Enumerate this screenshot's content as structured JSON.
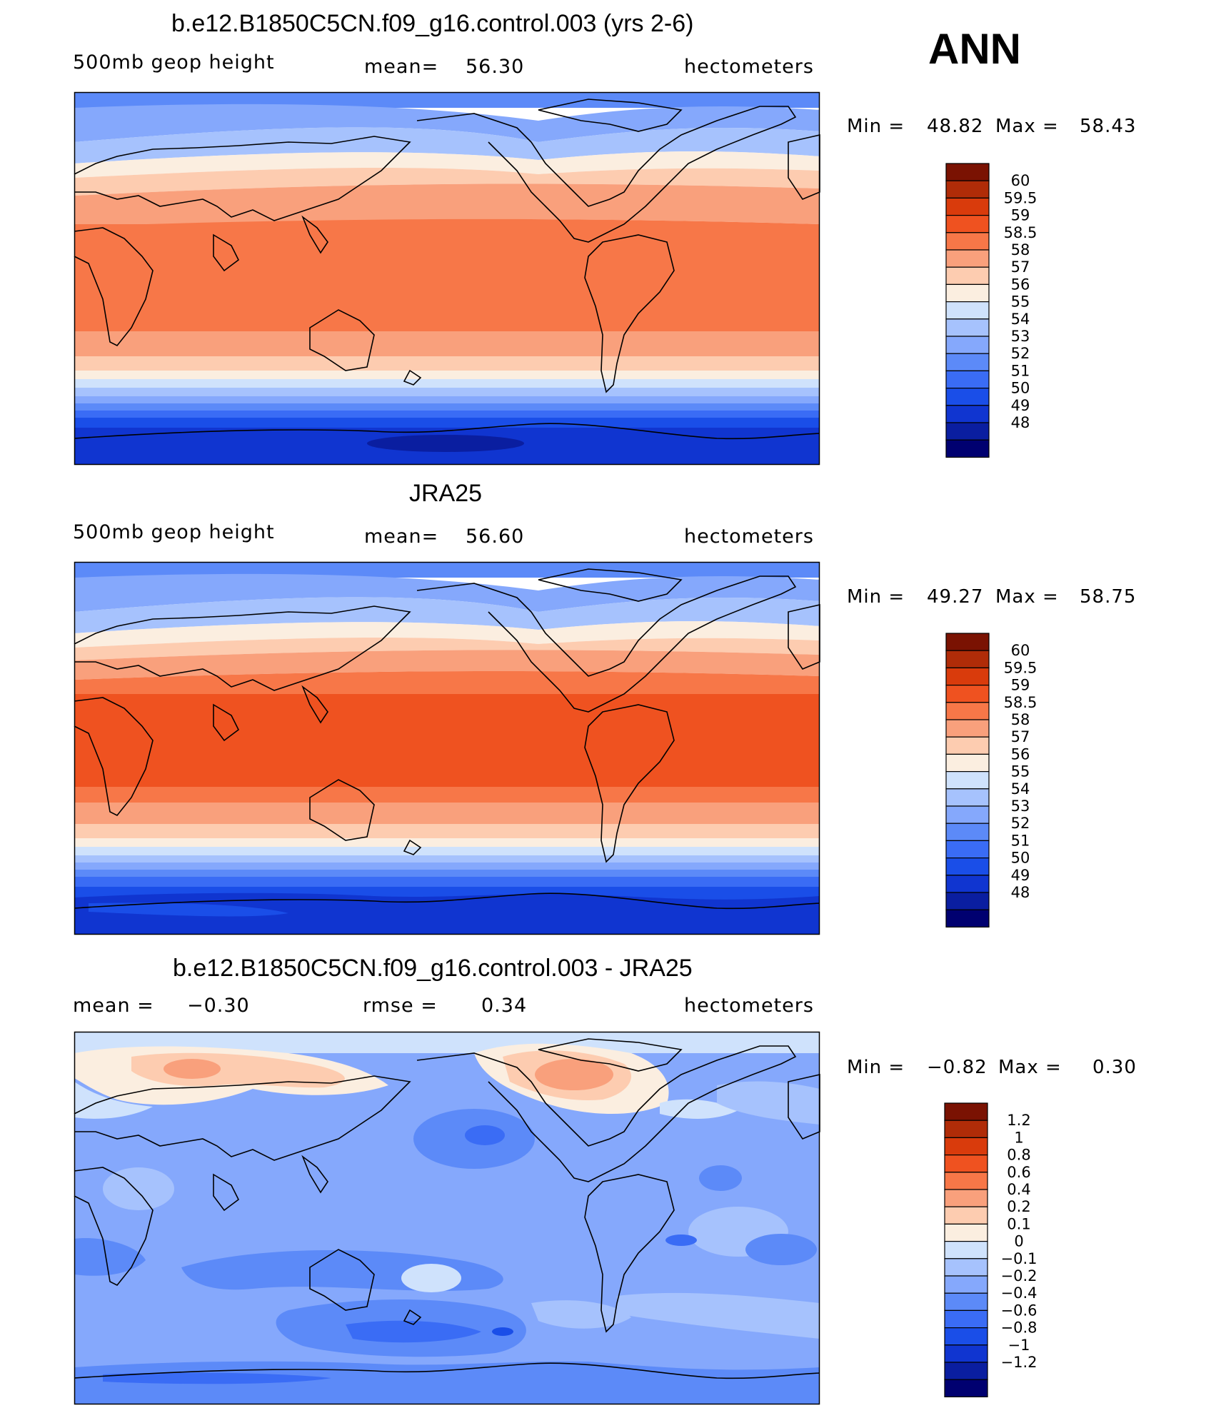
{
  "season": "ANN",
  "colors": {
    "levels_rgb": [
      "#000070",
      "#0a1ea0",
      "#1035d0",
      "#1a4ee8",
      "#3a6cf5",
      "#5c8af8",
      "#85a8fc",
      "#a6c2fd",
      "#cfe2fc",
      "#fbeee0",
      "#fdccb0",
      "#f9a07c",
      "#f77748",
      "#ef5220",
      "#d93b0c",
      "#b02c08",
      "#7a1202"
    ],
    "land_outline": "#000000"
  },
  "panels": [
    {
      "title": "b.e12.B1850C5CN.f09_g16.control.003 (yrs 2-6)",
      "left_label": "500mb geop height",
      "mid_label": "mean=",
      "mid_value": "56.30",
      "right_label": "hectometers",
      "min_label": "Min =",
      "min_value": "48.82",
      "max_label": "Max =",
      "max_value": "58.43",
      "colorbar_labels": [
        "60",
        "59.5",
        "59",
        "58.5",
        "58",
        "57",
        "56",
        "55",
        "54",
        "53",
        "52",
        "51",
        "50",
        "49",
        "48"
      ]
    },
    {
      "title": "JRA25",
      "left_label": "500mb geop height",
      "mid_label": "mean=",
      "mid_value": "56.60",
      "right_label": "hectometers",
      "min_label": "Min =",
      "min_value": "49.27",
      "max_label": "Max =",
      "max_value": "58.75",
      "colorbar_labels": [
        "60",
        "59.5",
        "59",
        "58.5",
        "58",
        "57",
        "56",
        "55",
        "54",
        "53",
        "52",
        "51",
        "50",
        "49",
        "48"
      ]
    },
    {
      "title": "b.e12.B1850C5CN.f09_g16.control.003 - JRA25",
      "left_label": "mean =",
      "left_value": "−0.30",
      "mid_label": "rmse =",
      "mid_value": "0.34",
      "right_label": "hectometers",
      "min_label": "Min =",
      "min_value": "−0.82",
      "max_label": "Max =",
      "max_value": "0.30",
      "colorbar_labels": [
        "1.2",
        "1",
        "0.8",
        "0.6",
        "0.4",
        "0.2",
        "0.1",
        "0",
        "−0.1",
        "−0.2",
        "−0.4",
        "−0.6",
        "−0.8",
        "−1",
        "−1.2"
      ]
    }
  ]
}
